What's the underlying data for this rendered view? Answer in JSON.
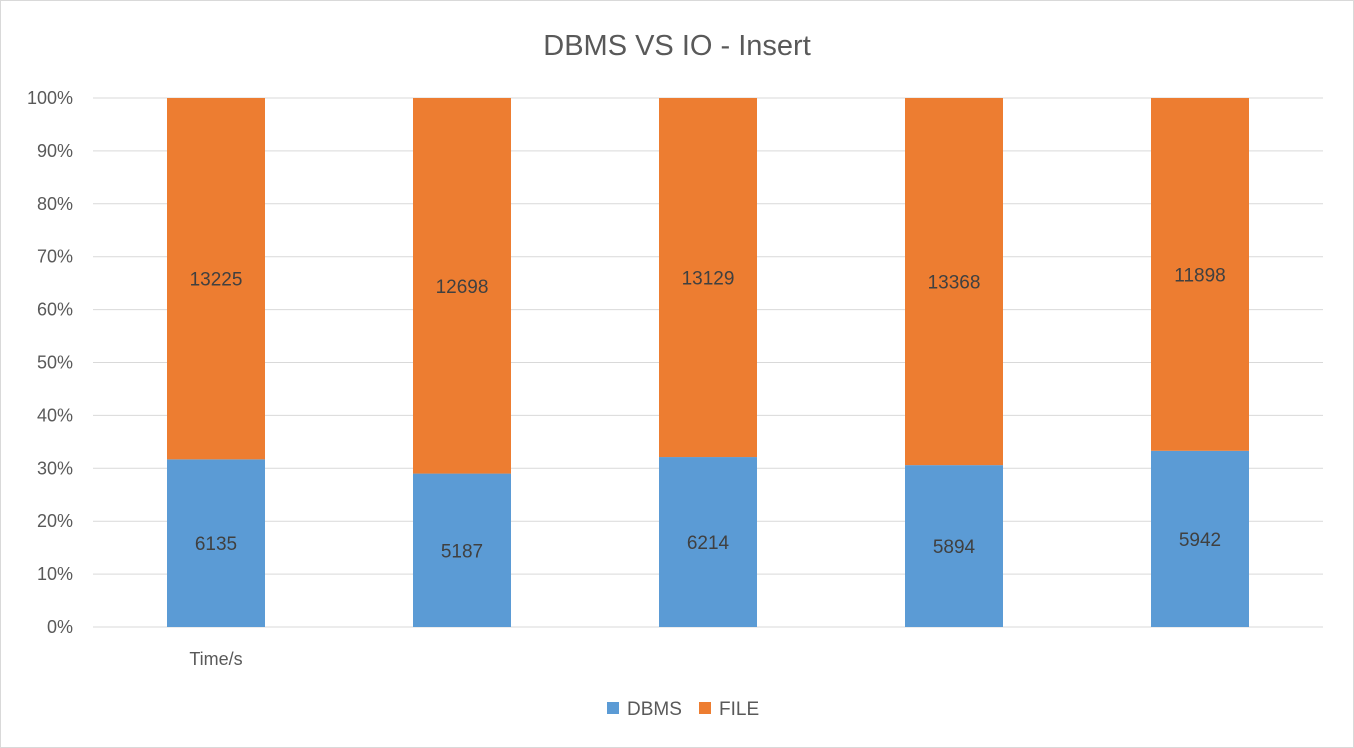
{
  "chart_data": {
    "type": "bar",
    "stacked": true,
    "normalized": "percent",
    "title": "DBMS VS IO - Insert",
    "categories": [
      "Time/s",
      "",
      "",
      "",
      ""
    ],
    "series": [
      {
        "name": "DBMS",
        "color": "#5b9bd5",
        "values": [
          6135,
          5187,
          6214,
          5894,
          5942
        ]
      },
      {
        "name": "FILE",
        "color": "#ed7d31",
        "values": [
          13225,
          12698,
          13129,
          13368,
          11898
        ]
      }
    ],
    "y_ticks": [
      "0%",
      "10%",
      "20%",
      "30%",
      "40%",
      "50%",
      "60%",
      "70%",
      "80%",
      "90%",
      "100%"
    ],
    "ylim": [
      0,
      100
    ],
    "grid": true,
    "legend_position": "bottom"
  }
}
